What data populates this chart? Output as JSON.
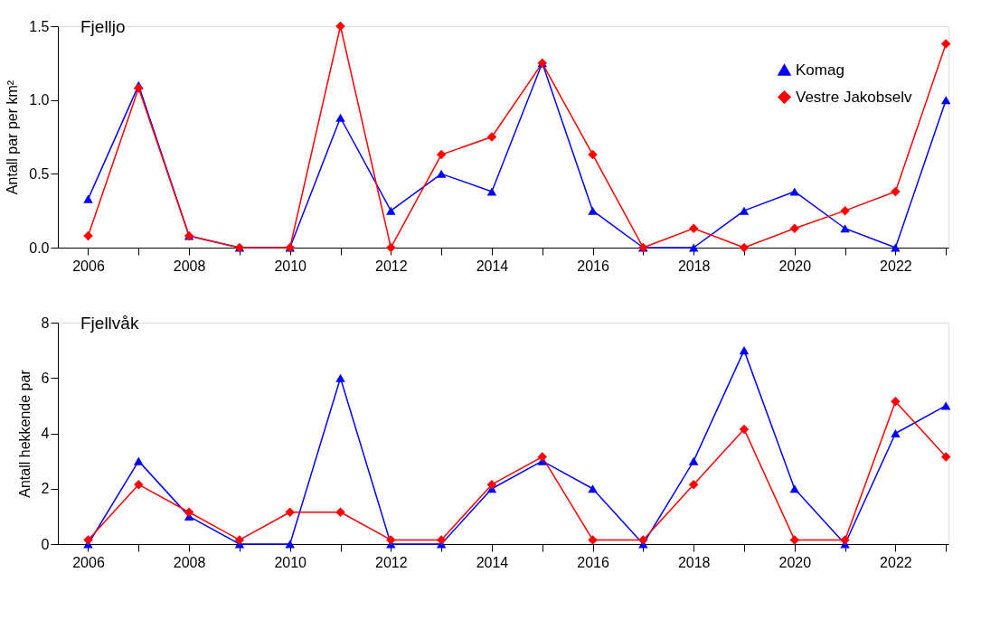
{
  "chart_data": [
    {
      "type": "line",
      "title": "Fjelljo",
      "ylabel": "Antall par per km²",
      "x": [
        2006,
        2007,
        2008,
        2009,
        2010,
        2011,
        2012,
        2013,
        2014,
        2015,
        2016,
        2017,
        2018,
        2019,
        2020,
        2021,
        2022,
        2023
      ],
      "xlim": [
        2005.4,
        2023.05
      ],
      "xticks": [
        2006,
        {
          "value": 2007,
          "label": null
        },
        2008,
        {
          "value": 2009,
          "label": null
        },
        2010,
        {
          "value": 2011,
          "label": null
        },
        2012,
        {
          "value": 2013,
          "label": null
        },
        2014,
        {
          "value": 2015,
          "label": null
        },
        2016,
        {
          "value": 2017,
          "label": null
        },
        2018,
        {
          "value": 2019,
          "label": null
        },
        2020,
        {
          "value": 2021,
          "label": null
        },
        2022,
        {
          "value": 2023,
          "label": null
        }
      ],
      "ylim": [
        0,
        1.5
      ],
      "yticks": [
        {
          "value": 0,
          "label": "0.0"
        },
        {
          "value": 0.5,
          "label": "0.5"
        },
        {
          "value": 1,
          "label": "1.0"
        },
        {
          "value": 1.5,
          "label": "1.5"
        }
      ],
      "grid": false,
      "legend": "top right",
      "line_style": "solid",
      "series": [
        {
          "name": "Komag",
          "color": "#0000ff",
          "marker": "triangle",
          "values": [
            0.33,
            1.1,
            0.08,
            0,
            0,
            0.88,
            0.25,
            0.5,
            0.38,
            1.25,
            0.25,
            0,
            0,
            0.25,
            0.38,
            0.13,
            0,
            1.0
          ]
        },
        {
          "name": "Vestre Jakobselv",
          "color": "#ff0000",
          "marker": "diamond",
          "values": [
            0.08,
            1.08,
            0.08,
            0,
            0,
            1.5,
            0,
            0.63,
            0.75,
            1.25,
            0.63,
            0,
            0.13,
            0,
            0.13,
            0.25,
            0.38,
            1.38
          ]
        }
      ]
    },
    {
      "type": "line",
      "title": "Fjellvåk",
      "ylabel": "Antall hekkende par",
      "x": [
        2006,
        2007,
        2008,
        2009,
        2010,
        2011,
        2012,
        2013,
        2014,
        2015,
        2016,
        2017,
        2018,
        2019,
        2020,
        2021,
        2022,
        2023
      ],
      "xlim": [
        2005.4,
        2023.05
      ],
      "xticks": [
        2006,
        {
          "value": 2007,
          "label": null
        },
        2008,
        {
          "value": 2009,
          "label": null
        },
        2010,
        {
          "value": 2011,
          "label": null
        },
        2012,
        {
          "value": 2013,
          "label": null
        },
        2014,
        {
          "value": 2015,
          "label": null
        },
        2016,
        {
          "value": 2017,
          "label": null
        },
        2018,
        {
          "value": 2019,
          "label": null
        },
        2020,
        {
          "value": 2021,
          "label": null
        },
        2022,
        {
          "value": 2023,
          "label": null
        }
      ],
      "ylim": [
        0,
        8
      ],
      "yticks": [
        0,
        2,
        4,
        6,
        8
      ],
      "grid": false,
      "legend": false,
      "line_style": "solid",
      "series": [
        {
          "color": "#0000ff",
          "marker": "triangle",
          "values": [
            0,
            3,
            1,
            0,
            0,
            6,
            0,
            0,
            2,
            3,
            2,
            0,
            3,
            7,
            2,
            0,
            4,
            5
          ]
        },
        {
          "color": "#ff0000",
          "marker": "diamond",
          "values": [
            0.15,
            2.15,
            1.15,
            0.15,
            1.15,
            1.15,
            0.15,
            0.15,
            2.15,
            3.15,
            0.15,
            0.15,
            2.15,
            4.15,
            0.15,
            0.15,
            5.15,
            3.15
          ]
        }
      ]
    }
  ]
}
